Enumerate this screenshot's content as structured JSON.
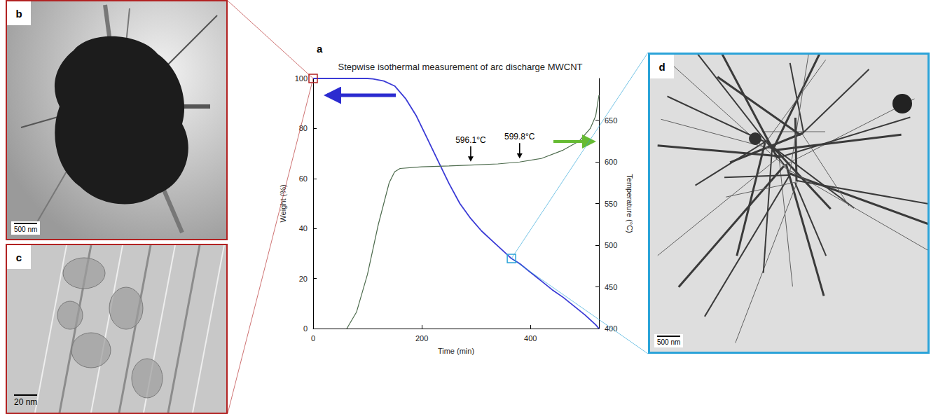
{
  "chart_data": {
    "type": "line",
    "panel_label": "a",
    "title": "Stepwise isothermal measurement of arc discharge MWCNT",
    "x_label": "Time (min)",
    "y_label": "Weight (%)",
    "y2_label": "Temperature (°C)",
    "xlim": [
      0,
      526
    ],
    "xticks": [
      0,
      200,
      400
    ],
    "ylim": [
      0,
      100
    ],
    "yticks": [
      0,
      20,
      40,
      60,
      80,
      100
    ],
    "y2lim": [
      400,
      700
    ],
    "y2ticks": [
      400,
      450,
      500,
      550,
      600,
      650
    ],
    "grid": false,
    "series": [
      {
        "color": "#3b3bd6",
        "x": [
          0,
          100,
          110,
          130,
          150,
          170,
          190,
          210,
          230,
          250,
          270,
          290,
          310,
          330,
          350,
          365,
          380,
          400,
          420,
          440,
          460,
          480,
          500,
          520,
          526
        ],
        "values": [
          100,
          100,
          99.8,
          99,
          97,
          92,
          85,
          76,
          67,
          58,
          50,
          44,
          39,
          35,
          31,
          28,
          26,
          22.5,
          19,
          15.5,
          12.5,
          9,
          5.5,
          1.5,
          0
        ]
      },
      {
        "color": "#4d6b4d",
        "axis": "y2",
        "x": [
          62,
          80,
          100,
          120,
          140,
          150,
          160,
          200,
          250,
          290,
          340,
          380,
          420,
          460,
          490,
          510,
          520,
          526
        ],
        "values": [
          400,
          420,
          465,
          525,
          575,
          588,
          592,
          594,
          595,
          596.1,
          597.5,
          599.8,
          604,
          614,
          625,
          640,
          655,
          680
        ]
      }
    ],
    "annotations": [
      {
        "text": "596.1°C",
        "x": 290,
        "y": 596.1,
        "axis": "y2"
      },
      {
        "text": "599.8°C",
        "x": 380,
        "y": 599.8,
        "axis": "y2"
      }
    ],
    "markers": [
      {
        "x": 0,
        "y": 100,
        "color": "#b22222"
      },
      {
        "x": 365,
        "y": 28,
        "color": "#2aa3d8"
      }
    ]
  },
  "panels": [
    {
      "label": "b",
      "scale_bar": "500 nm"
    },
    {
      "label": "c",
      "scale_bar": "20 nm"
    },
    {
      "label": "d",
      "scale_bar": "500 nm"
    }
  ]
}
